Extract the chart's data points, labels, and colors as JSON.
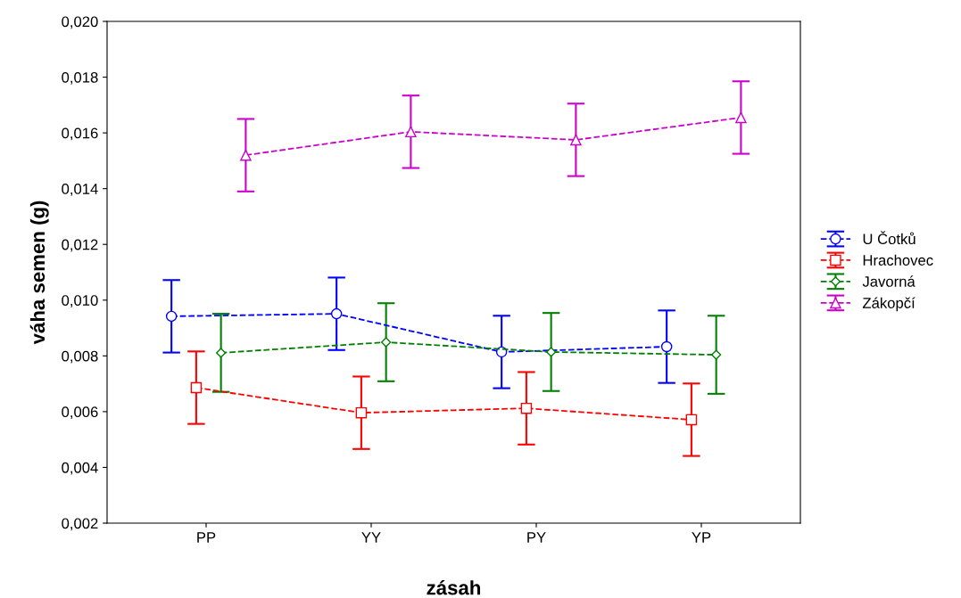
{
  "chart_data": {
    "type": "line",
    "xlabel": "zásah",
    "ylabel": "váha semen (g)",
    "categories": [
      "PP",
      "YY",
      "PY",
      "YP"
    ],
    "series": [
      {
        "name": "U Čotků",
        "color": "#0000ff",
        "marker": "circle",
        "values": [
          0.00942,
          0.00951,
          0.00814,
          0.00833
        ],
        "errors": [
          0.0013,
          0.0013,
          0.0013,
          0.0013
        ]
      },
      {
        "name": "Hrachovec",
        "color": "#ff0000",
        "marker": "square",
        "values": [
          0.00686,
          0.00596,
          0.00612,
          0.00571
        ],
        "errors": [
          0.0013,
          0.0013,
          0.0013,
          0.0013
        ]
      },
      {
        "name": "Javorná",
        "color": "#008000",
        "marker": "diamond",
        "values": [
          0.00811,
          0.00849,
          0.00814,
          0.00804
        ],
        "errors": [
          0.0014,
          0.0014,
          0.0014,
          0.0014
        ]
      },
      {
        "name": "Zákopčí",
        "color": "#cc00cc",
        "marker": "triangle",
        "values": [
          0.0152,
          0.01604,
          0.01575,
          0.01655
        ],
        "errors": [
          0.0013,
          0.0013,
          0.0013,
          0.0013
        ]
      }
    ],
    "ylim": [
      0.002,
      0.02
    ],
    "yticks": [
      {
        "value": 0.002,
        "label": "0,002"
      },
      {
        "value": 0.004,
        "label": "0,004"
      },
      {
        "value": 0.006,
        "label": "0,006"
      },
      {
        "value": 0.008,
        "label": "0,008"
      },
      {
        "value": 0.01,
        "label": "0,010"
      },
      {
        "value": 0.012,
        "label": "0,012"
      },
      {
        "value": 0.014,
        "label": "0,014"
      },
      {
        "value": 0.016,
        "label": "0,016"
      },
      {
        "value": 0.018,
        "label": "0,018"
      },
      {
        "value": 0.02,
        "label": "0,020"
      }
    ],
    "line_style": "dashed",
    "grid": false,
    "legend": "right"
  }
}
